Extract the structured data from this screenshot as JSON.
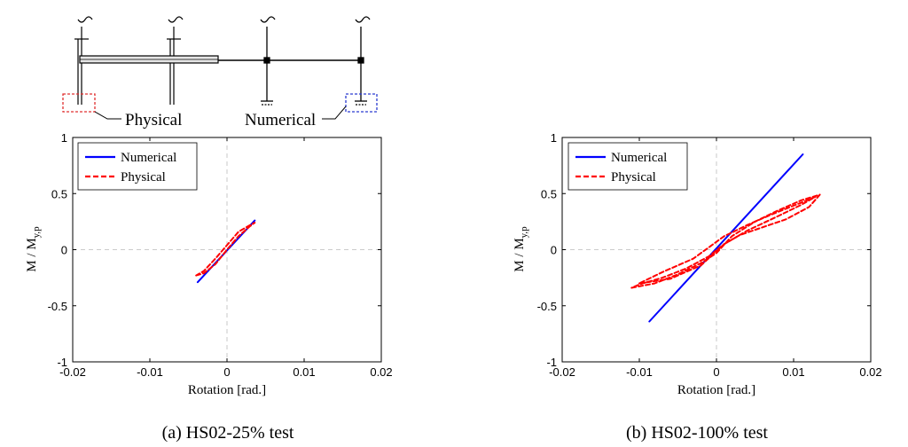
{
  "diagram": {
    "physical_label": "Physical",
    "numerical_label": "Numerical",
    "colors": {
      "physical_box": "#e03030",
      "numerical_box": "#2a3ad0"
    }
  },
  "chart_data": [
    {
      "type": "line",
      "caption": "(a) HS02-25% test",
      "xlabel": "Rotation [rad.]",
      "ylabel": "M / M",
      "ylabel_sub": "y,p",
      "xlim": [
        -0.02,
        0.02
      ],
      "ylim": [
        -1,
        1
      ],
      "xticks": [
        -0.02,
        -0.01,
        0,
        0.01,
        0.02
      ],
      "xtick_labels": [
        "-0.02",
        "-0.01",
        "0",
        "0.01",
        "0.02"
      ],
      "yticks": [
        1,
        0.5,
        0,
        -0.5,
        -1
      ],
      "ytick_labels": [
        "1",
        "0.5",
        "0",
        "-0.5",
        "-1"
      ],
      "grid": "dashed zero lines",
      "legend": "top-left",
      "series": [
        {
          "name": "Numerical",
          "style": "solid",
          "color": "#0000ff",
          "x": [
            -0.0038,
            0.0036
          ],
          "y": [
            -0.29,
            0.26
          ]
        },
        {
          "name": "Physical",
          "style": "dashed",
          "color": "#ff0000",
          "x": [
            -0.004,
            -0.003,
            -0.0015,
            0.0,
            0.0015,
            0.003,
            0.0036,
            0.003,
            0.0015,
            0.0,
            -0.0015,
            -0.003,
            -0.004
          ],
          "y": [
            -0.23,
            -0.21,
            -0.13,
            0.0,
            0.12,
            0.21,
            0.24,
            0.22,
            0.16,
            0.04,
            -0.08,
            -0.19,
            -0.23
          ]
        }
      ]
    },
    {
      "type": "line",
      "caption": "(b) HS02-100% test",
      "xlabel": "Rotation [rad.]",
      "ylabel": "M / M",
      "ylabel_sub": "y,p",
      "xlim": [
        -0.02,
        0.02
      ],
      "ylim": [
        -1,
        1
      ],
      "xticks": [
        -0.02,
        -0.01,
        0,
        0.01,
        0.02
      ],
      "xtick_labels": [
        "-0.02",
        "-0.01",
        "0",
        "0.01",
        "0.02"
      ],
      "yticks": [
        1,
        0.5,
        0,
        -0.5,
        -1
      ],
      "ytick_labels": [
        "1",
        "0.5",
        "0",
        "-0.5",
        "-1"
      ],
      "grid": "dashed zero lines",
      "legend": "top-left",
      "series": [
        {
          "name": "Numerical",
          "style": "solid",
          "color": "#0000ff",
          "x": [
            -0.0087,
            0.0112
          ],
          "y": [
            -0.64,
            0.85
          ]
        },
        {
          "name": "Physical",
          "style": "dashed",
          "color": "#ff0000",
          "x": [
            -0.011,
            -0.008,
            -0.005,
            -0.002,
            0.0,
            0.002,
            0.005,
            0.008,
            0.011,
            0.0134,
            0.012,
            0.009,
            0.006,
            0.003,
            0.001,
            -0.001,
            -0.004,
            -0.007,
            -0.01,
            -0.011
          ],
          "y": [
            -0.34,
            -0.3,
            -0.22,
            -0.12,
            -0.03,
            0.12,
            0.25,
            0.35,
            0.44,
            0.49,
            0.38,
            0.27,
            0.2,
            0.13,
            0.05,
            -0.06,
            -0.17,
            -0.25,
            -0.31,
            -0.34
          ]
        },
        {
          "name": "",
          "style": "dashed",
          "color": "#ff0000",
          "x": [
            -0.01,
            -0.006,
            -0.002,
            0.001,
            0.004,
            0.008,
            0.011,
            0.0128,
            0.011,
            0.007,
            0.004,
            0.001,
            -0.003,
            -0.007,
            -0.01
          ],
          "y": [
            -0.3,
            -0.26,
            -0.14,
            0.05,
            0.17,
            0.3,
            0.4,
            0.47,
            0.42,
            0.31,
            0.22,
            0.12,
            -0.08,
            -0.2,
            -0.3
          ]
        }
      ]
    }
  ]
}
